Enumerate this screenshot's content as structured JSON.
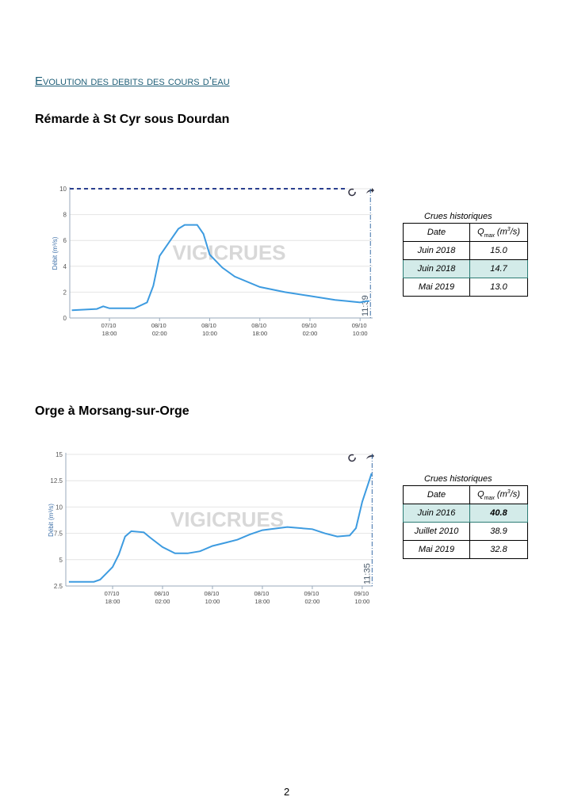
{
  "heading": "Evolution des debits des cours d’eau",
  "page_number": "2",
  "sections": [
    {
      "title": "Rémarde à St Cyr sous Dourdan",
      "table": {
        "caption": "Crues historiques",
        "header": [
          "Date",
          {
            "base": "Q",
            "sub": "max",
            "unit": " (m",
            "sup": "3",
            "tail": "/s)"
          }
        ],
        "rows": [
          [
            "Juin 2018",
            "15.0"
          ],
          [
            "Juin 2018",
            "14.7"
          ],
          [
            "Mai 2019",
            "13.0"
          ]
        ],
        "highlight_row": 1
      }
    },
    {
      "title": "Orge à Morsang-sur-Orge",
      "table": {
        "caption": "Crues historiques",
        "header": [
          "Date",
          {
            "base": "Q",
            "sub": "max",
            "unit": " (m",
            "sup": "3",
            "tail": "/s)"
          }
        ],
        "rows": [
          [
            "Juin 2016",
            "40.8"
          ],
          [
            "Juillet 2010",
            "38.9"
          ],
          [
            "Mai 2019",
            "32.8"
          ]
        ],
        "highlight_row": 0,
        "bold_row": 0
      }
    }
  ],
  "chart_data": [
    {
      "type": "line",
      "ylabel": "Débit (m³/s)",
      "watermark": "VIGICRUES",
      "color": "#3d9be0",
      "grid": true,
      "x": [
        "07/10 12:00",
        "07/10 16:00",
        "07/10 17:00",
        "07/10 18:00",
        "07/10 22:00",
        "08/10 00:00",
        "08/10 01:00",
        "08/10 02:00",
        "08/10 04:00",
        "08/10 05:00",
        "08/10 06:00",
        "08/10 08:00",
        "08/10 09:00",
        "08/10 10:00",
        "08/10 12:00",
        "08/10 14:00",
        "08/10 18:00",
        "08/10 22:00",
        "09/10 02:00",
        "09/10 06:00",
        "09/10 08:00",
        "09/10 10:00",
        "09/10 11:00",
        "09/10 11:30"
      ],
      "values": [
        0.6,
        0.7,
        0.9,
        0.75,
        0.75,
        1.2,
        2.5,
        4.8,
        6.2,
        6.9,
        7.2,
        7.2,
        6.5,
        4.9,
        3.9,
        3.2,
        2.4,
        2.0,
        1.7,
        1.4,
        1.3,
        1.2,
        1.3,
        1.3
      ],
      "xlim": [
        "07/10 11:40",
        "09/10 12:00"
      ],
      "xticks": [
        "07/10 18:00",
        "08/10 02:00",
        "08/10 10:00",
        "08/10 18:00",
        "09/10 02:00",
        "09/10 10:00"
      ],
      "ylim": [
        0,
        10
      ],
      "yticks": [
        0,
        2,
        4,
        6,
        8,
        10
      ],
      "threshold": 10,
      "now_line": {
        "value": "09/10 11:39",
        "label": "11:39"
      }
    },
    {
      "type": "line",
      "ylabel": "Débit (m³/s)",
      "watermark": "VIGICRUES",
      "color": "#3d9be0",
      "grid": true,
      "x": [
        "07/10 11:00",
        "07/10 15:00",
        "07/10 16:00",
        "07/10 17:00",
        "07/10 18:00",
        "07/10 19:00",
        "07/10 20:00",
        "07/10 21:00",
        "07/10 23:00",
        "08/10 00:00",
        "08/10 02:00",
        "08/10 04:00",
        "08/10 06:00",
        "08/10 08:00",
        "08/10 10:00",
        "08/10 12:00",
        "08/10 14:00",
        "08/10 16:00",
        "08/10 18:00",
        "08/10 22:00",
        "09/10 02:00",
        "09/10 04:00",
        "09/10 06:00",
        "09/10 08:00",
        "09/10 09:00",
        "09/10 10:00",
        "09/10 11:00",
        "09/10 11:30"
      ],
      "values": [
        2.9,
        2.9,
        3.1,
        3.7,
        4.3,
        5.5,
        7.2,
        7.7,
        7.6,
        7.1,
        6.2,
        5.6,
        5.6,
        5.8,
        6.3,
        6.6,
        6.9,
        7.4,
        7.8,
        8.1,
        7.9,
        7.5,
        7.2,
        7.3,
        8.0,
        10.5,
        12.3,
        13.2
      ],
      "xlim": [
        "07/10 10:30",
        "09/10 11:40"
      ],
      "xticks": [
        "07/10 18:00",
        "08/10 02:00",
        "08/10 10:00",
        "08/10 18:00",
        "09/10 02:00",
        "09/10 10:00"
      ],
      "ylim": [
        2.5,
        15
      ],
      "yticks": [
        2.5,
        5,
        7.5,
        10,
        12.5,
        15
      ],
      "now_line": {
        "value": "09/10 11:35",
        "label": "11:35"
      }
    }
  ]
}
